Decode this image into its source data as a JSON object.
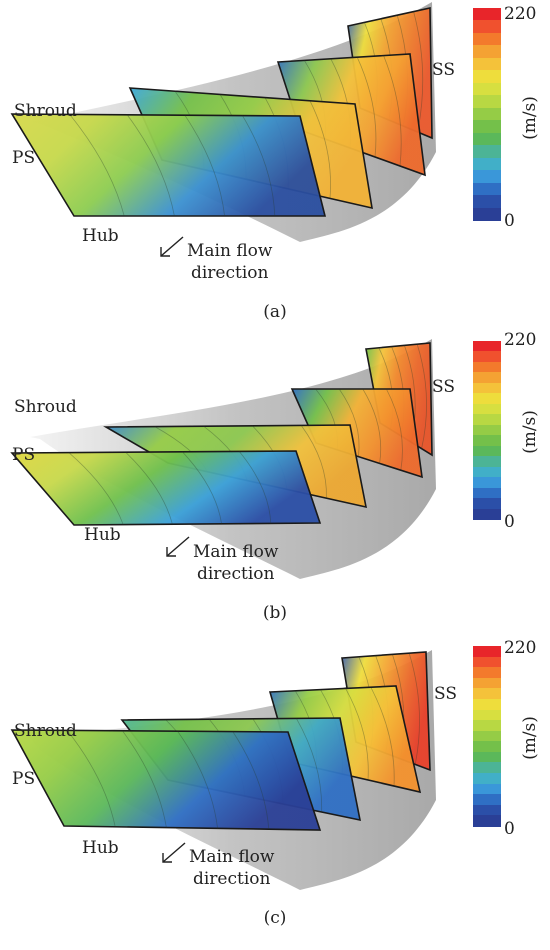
{
  "colorbar": {
    "max_label": "220",
    "min_label": "0",
    "unit": "(m/s)",
    "colors": [
      "#e8252a",
      "#f0512e",
      "#f37a2c",
      "#f4a233",
      "#f4c23a",
      "#eedd3c",
      "#d7df40",
      "#b8d843",
      "#95cc46",
      "#74c04a",
      "#5bb85a",
      "#4cb496",
      "#41afc8",
      "#3a97d9",
      "#2f6fc4",
      "#2b4fa8",
      "#2a3f96"
    ]
  },
  "labels": {
    "shroud": "Shroud",
    "ps": "PS",
    "hub": "Hub",
    "ss": "SS",
    "flow_line1": "Main flow",
    "flow_line2": "direction"
  },
  "panels": [
    {
      "caption": "(a)"
    },
    {
      "caption": "(b)"
    },
    {
      "caption": "(c)"
    }
  ]
}
